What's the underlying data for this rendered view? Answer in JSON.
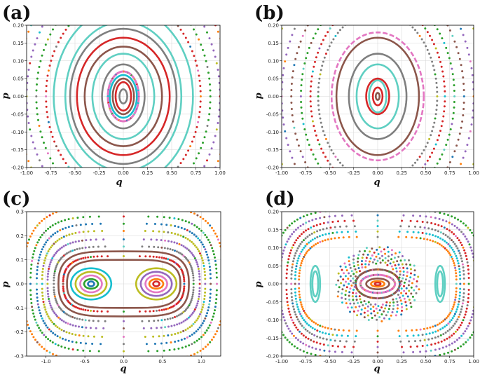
{
  "figure": {
    "colors": [
      "#1f77b4",
      "#ff7f0e",
      "#2ca02c",
      "#d62728",
      "#9467bd",
      "#8c564b",
      "#e377c2",
      "#7f7f7f",
      "#bcbd22",
      "#17becf",
      "#5fcfc2"
    ]
  },
  "chart_data": [
    {
      "panel": "(a)",
      "type": "scatter",
      "xlabel": "q",
      "ylabel": "p",
      "xlim": [
        -1.0,
        1.0
      ],
      "ylim": [
        -0.2,
        0.2
      ],
      "xticks": [
        "-1.00",
        "-0.75",
        "-0.50",
        "-0.25",
        "0.00",
        "0.25",
        "0.50",
        "0.75",
        "1.00"
      ],
      "xtick_values": [
        -1.0,
        -0.75,
        -0.5,
        -0.25,
        0,
        0.25,
        0.5,
        0.75,
        1.0
      ],
      "yticks": [
        "-0.20",
        "-0.15",
        "-0.10",
        "-0.05",
        "0.00",
        "0.05",
        "0.10",
        "0.15",
        "0.20"
      ],
      "ytick_values": [
        -0.2,
        -0.15,
        -0.1,
        -0.05,
        0,
        0.05,
        0.1,
        0.15,
        0.2
      ],
      "grid": true,
      "orbits": [
        {
          "kind": "ellipse",
          "cx": 0,
          "cy": 0,
          "a": 0.04,
          "b": 0.02,
          "color": "#7f7f7f",
          "style": "solid"
        },
        {
          "kind": "ellipse",
          "cx": 0,
          "cy": 0,
          "a": 0.08,
          "b": 0.04,
          "color": "#d62728",
          "style": "solid"
        },
        {
          "kind": "ellipse",
          "cx": 0,
          "cy": 0,
          "a": 0.11,
          "b": 0.05,
          "color": "#8c564b",
          "style": "solid"
        },
        {
          "kind": "ellipse",
          "cx": 0,
          "cy": 0,
          "a": 0.14,
          "b": 0.06,
          "color": "#17becf",
          "style": "solid"
        },
        {
          "kind": "ellipse",
          "cx": 0,
          "cy": 0,
          "a": 0.16,
          "b": 0.07,
          "color": "#e377c2",
          "style": "dots"
        },
        {
          "kind": "ellipse",
          "cx": 0,
          "cy": 0,
          "a": 0.22,
          "b": 0.09,
          "color": "#7f7f7f",
          "style": "solid"
        },
        {
          "kind": "ellipse",
          "cx": 0,
          "cy": 0,
          "a": 0.32,
          "b": 0.12,
          "color": "#5fcfc2",
          "style": "solid"
        },
        {
          "kind": "ellipse",
          "cx": 0,
          "cy": 0,
          "a": 0.4,
          "b": 0.14,
          "color": "#8c564b",
          "style": "solid"
        },
        {
          "kind": "ellipse",
          "cx": 0,
          "cy": 0,
          "a": 0.48,
          "b": 0.165,
          "color": "#d62728",
          "style": "solid"
        },
        {
          "kind": "ellipse",
          "cx": 0,
          "cy": 0,
          "a": 0.55,
          "b": 0.19,
          "color": "#7f7f7f",
          "style": "solid"
        },
        {
          "kind": "ellipse",
          "cx": 0,
          "cy": 0,
          "a": 0.6,
          "b": 0.21,
          "color": "#5fcfc2",
          "style": "solid"
        },
        {
          "kind": "ellipse",
          "cx": 0,
          "cy": 0,
          "a": 0.72,
          "b": 0.25,
          "color": "#5fcfc2",
          "style": "solid"
        },
        {
          "kind": "ellipse",
          "cx": 0,
          "cy": 0,
          "a": 0.8,
          "b": 0.28,
          "color": "#d62728",
          "style": "dots"
        },
        {
          "kind": "ellipse",
          "cx": 0,
          "cy": 0,
          "a": 0.9,
          "b": 0.32,
          "color": "#2ca02c",
          "style": "dots"
        },
        {
          "kind": "ellipse",
          "cx": 0,
          "cy": 0,
          "a": 1.0,
          "b": 0.36,
          "color": "#9467bd",
          "style": "dots"
        },
        {
          "kind": "ellipse",
          "cx": 0,
          "cy": 0,
          "a": 1.1,
          "b": 0.4,
          "color": "#ff7f0e",
          "style": "dots"
        },
        {
          "kind": "ellipse",
          "cx": 0,
          "cy": 0,
          "a": 1.22,
          "b": 0.45,
          "color": "#1f77b4",
          "style": "dots"
        }
      ]
    },
    {
      "panel": "(b)",
      "type": "scatter",
      "xlabel": "q",
      "ylabel": "p",
      "xlim": [
        -1.0,
        1.0
      ],
      "ylim": [
        -0.2,
        0.2
      ],
      "xticks": [
        "-1.00",
        "-0.75",
        "-0.50",
        "-0.25",
        "0.00",
        "0.25",
        "0.50",
        "0.75",
        "1.00"
      ],
      "xtick_values": [
        -1.0,
        -0.75,
        -0.5,
        -0.25,
        0,
        0.25,
        0.5,
        0.75,
        1.0
      ],
      "yticks": [
        "-0.20",
        "-0.15",
        "-0.10",
        "-0.05",
        "0.00",
        "0.05",
        "0.10",
        "0.15",
        "0.20"
      ],
      "ytick_values": [
        -0.2,
        -0.15,
        -0.1,
        -0.05,
        0,
        0.05,
        0.1,
        0.15,
        0.2
      ],
      "grid": true,
      "orbits": [
        {
          "kind": "ellipse",
          "cx": 0,
          "cy": 0,
          "a": 0.02,
          "b": 0.01,
          "color": "#8c564b",
          "style": "solid"
        },
        {
          "kind": "ellipse",
          "cx": 0,
          "cy": 0,
          "a": 0.05,
          "b": 0.025,
          "color": "#d62728",
          "style": "solid"
        },
        {
          "kind": "ellipse",
          "cx": 0,
          "cy": 0,
          "a": 0.09,
          "b": 0.045,
          "color": "#5fcfc2",
          "style": "solid"
        },
        {
          "kind": "ellipse",
          "cx": 0,
          "cy": 0,
          "a": 0.12,
          "b": 0.05,
          "color": "#d62728",
          "style": "solid"
        },
        {
          "kind": "ellipse",
          "cx": 0,
          "cy": 0,
          "a": 0.22,
          "b": 0.09,
          "color": "#5fcfc2",
          "style": "solid"
        },
        {
          "kind": "ellipse",
          "cx": 0,
          "cy": 0,
          "a": 0.3,
          "b": 0.12,
          "color": "#7f7f7f",
          "style": "solid"
        },
        {
          "kind": "ellipse",
          "cx": 0,
          "cy": 0,
          "a": 0.43,
          "b": 0.165,
          "color": "#8c564b",
          "style": "solid"
        },
        {
          "kind": "ellipse",
          "cx": 0,
          "cy": 0,
          "a": 0.48,
          "b": 0.18,
          "color": "#e377c2",
          "style": "dash"
        },
        {
          "kind": "ellipse",
          "cx": 0,
          "cy": 0,
          "a": 0.62,
          "b": 0.24,
          "color": "#7f7f7f",
          "style": "dots"
        },
        {
          "kind": "ellipse",
          "cx": 0,
          "cy": 0,
          "a": 0.7,
          "b": 0.27,
          "color": "#d62728",
          "style": "dots"
        },
        {
          "kind": "ellipse",
          "cx": 0,
          "cy": 0,
          "a": 0.8,
          "b": 0.3,
          "color": "#2ca02c",
          "style": "dots"
        },
        {
          "kind": "ellipse",
          "cx": 0,
          "cy": 0,
          "a": 0.9,
          "b": 0.34,
          "color": "#8c564b",
          "style": "dots"
        },
        {
          "kind": "ellipse",
          "cx": 0,
          "cy": 0,
          "a": 1.0,
          "b": 0.38,
          "color": "#9467bd",
          "style": "dots"
        },
        {
          "kind": "ellipse",
          "cx": 0,
          "cy": 0,
          "a": 1.12,
          "b": 0.42,
          "color": "#bcbd22",
          "style": "dots"
        }
      ]
    },
    {
      "panel": "(c)",
      "type": "scatter",
      "xlabel": "q",
      "ylabel": "p",
      "xlim": [
        -1.25,
        1.25
      ],
      "ylim": [
        -0.3,
        0.3
      ],
      "xticks": [
        "-1.0",
        "-0.5",
        "0.0",
        "0.5",
        "1.0"
      ],
      "xtick_values": [
        -1.0,
        -0.5,
        0,
        0.5,
        1.0
      ],
      "yticks": [
        "-0.3",
        "-0.2",
        "-0.1",
        "0.0",
        "0.1",
        "0.2",
        "0.3"
      ],
      "ytick_values": [
        -0.3,
        -0.2,
        -0.1,
        0,
        0.1,
        0.2,
        0.3
      ],
      "grid": true,
      "orbits": [
        {
          "kind": "ellipse",
          "cx": -0.42,
          "cy": 0,
          "a": 0.04,
          "b": 0.01,
          "color": "#1f77b4",
          "style": "solid"
        },
        {
          "kind": "ellipse",
          "cx": -0.42,
          "cy": 0,
          "a": 0.09,
          "b": 0.02,
          "color": "#2ca02c",
          "style": "solid"
        },
        {
          "kind": "ellipse",
          "cx": -0.42,
          "cy": 0,
          "a": 0.14,
          "b": 0.035,
          "color": "#e377c2",
          "style": "solid"
        },
        {
          "kind": "ellipse",
          "cx": -0.42,
          "cy": 0,
          "a": 0.2,
          "b": 0.05,
          "color": "#bcbd22",
          "style": "solid"
        },
        {
          "kind": "ellipse",
          "cx": -0.42,
          "cy": 0,
          "a": 0.26,
          "b": 0.065,
          "color": "#17becf",
          "style": "solid"
        },
        {
          "kind": "ellipse",
          "cx": 0.42,
          "cy": 0,
          "a": 0.04,
          "b": 0.01,
          "color": "#d62728",
          "style": "solid"
        },
        {
          "kind": "ellipse",
          "cx": 0.42,
          "cy": 0,
          "a": 0.09,
          "b": 0.02,
          "color": "#ff7f0e",
          "style": "solid"
        },
        {
          "kind": "ellipse",
          "cx": 0.42,
          "cy": 0,
          "a": 0.14,
          "b": 0.035,
          "color": "#e377c2",
          "style": "solid"
        },
        {
          "kind": "ellipse",
          "cx": 0.42,
          "cy": 0,
          "a": 0.2,
          "b": 0.05,
          "color": "#9467bd",
          "style": "solid"
        },
        {
          "kind": "ellipse",
          "cx": 0.42,
          "cy": 0,
          "a": 0.26,
          "b": 0.065,
          "color": "#bcbd22",
          "style": "solid"
        },
        {
          "kind": "stadium",
          "hw": 0.73,
          "hh": 0.1,
          "color": "#8c564b",
          "style": "solid"
        },
        {
          "kind": "stadium",
          "hw": 0.78,
          "hh": 0.115,
          "color": "#d62728",
          "style": "dots"
        },
        {
          "kind": "stadium",
          "hw": 0.84,
          "hh": 0.135,
          "color": "#8c564b",
          "style": "solid"
        },
        {
          "kind": "stadium",
          "hw": 0.9,
          "hh": 0.155,
          "color": "#7f7f7f",
          "style": "dots"
        },
        {
          "kind": "stadium",
          "hw": 0.98,
          "hh": 0.185,
          "color": "#9467bd",
          "style": "dots"
        },
        {
          "kind": "stadium",
          "hw": 1.05,
          "hh": 0.22,
          "color": "#bcbd22",
          "style": "dots"
        },
        {
          "kind": "stadium",
          "hw": 1.12,
          "hh": 0.25,
          "color": "#1f77b4",
          "style": "dots"
        },
        {
          "kind": "stadium",
          "hw": 1.2,
          "hh": 0.28,
          "color": "#2ca02c",
          "style": "dots"
        },
        {
          "kind": "stadium",
          "hw": 1.3,
          "hh": 0.32,
          "color": "#ff7f0e",
          "style": "dots"
        }
      ]
    },
    {
      "panel": "(d)",
      "type": "scatter",
      "xlabel": "q",
      "ylabel": "p",
      "xlim": [
        -1.0,
        1.0
      ],
      "ylim": [
        -0.2,
        0.2
      ],
      "xticks": [
        "-1.00",
        "-0.75",
        "-0.50",
        "-0.25",
        "0.00",
        "0.25",
        "0.50",
        "0.75",
        "1.00"
      ],
      "xtick_values": [
        -1.0,
        -0.75,
        -0.5,
        -0.25,
        0,
        0.25,
        0.5,
        0.75,
        1.0
      ],
      "yticks": [
        "-0.20",
        "-0.15",
        "-0.10",
        "-0.05",
        "0.00",
        "0.05",
        "0.10",
        "0.15",
        "0.20"
      ],
      "ytick_values": [
        -0.2,
        -0.15,
        -0.1,
        -0.05,
        0,
        0.05,
        0.1,
        0.15,
        0.2
      ],
      "grid": true,
      "orbits": [
        {
          "kind": "ellipse",
          "cx": 0,
          "cy": 0,
          "a": 0.03,
          "b": 0.004,
          "color": "#d62728",
          "style": "solid"
        },
        {
          "kind": "ellipse",
          "cx": 0,
          "cy": 0,
          "a": 0.07,
          "b": 0.008,
          "color": "#ff7f0e",
          "style": "solid"
        },
        {
          "kind": "ellipse",
          "cx": 0,
          "cy": 0,
          "a": 0.12,
          "b": 0.015,
          "color": "#8c564b",
          "style": "solid"
        },
        {
          "kind": "ellipse",
          "cx": 0,
          "cy": 0,
          "a": 0.18,
          "b": 0.025,
          "color": "#e377c2",
          "style": "dots"
        },
        {
          "kind": "ellipse",
          "cx": 0,
          "cy": 0,
          "a": 0.23,
          "b": 0.04,
          "color": "#8c564b",
          "style": "dots"
        },
        {
          "kind": "ellipse",
          "cx": 0.65,
          "cy": 0,
          "a": 0.03,
          "b": 0.035,
          "color": "#5fcfc2",
          "style": "solid"
        },
        {
          "kind": "ellipse",
          "cx": 0.65,
          "cy": 0,
          "a": 0.05,
          "b": 0.05,
          "color": "#5fcfc2",
          "style": "solid"
        },
        {
          "kind": "ellipse",
          "cx": -0.65,
          "cy": 0,
          "a": 0.03,
          "b": 0.035,
          "color": "#5fcfc2",
          "style": "solid"
        },
        {
          "kind": "ellipse",
          "cx": -0.65,
          "cy": 0,
          "a": 0.05,
          "b": 0.05,
          "color": "#5fcfc2",
          "style": "solid"
        },
        {
          "kind": "chaos",
          "cx": 0,
          "cy": 0,
          "a": 0.42,
          "b": 0.1,
          "color": "mixed",
          "style": "dots"
        },
        {
          "kind": "stadium",
          "hw": 0.82,
          "hh": 0.13,
          "color": "#ff7f0e",
          "style": "dots"
        },
        {
          "kind": "stadium",
          "hw": 0.86,
          "hh": 0.145,
          "color": "#17becf",
          "style": "dots"
        },
        {
          "kind": "stadium",
          "hw": 0.9,
          "hh": 0.16,
          "color": "#7f7f7f",
          "style": "dots"
        },
        {
          "kind": "stadium",
          "hw": 0.95,
          "hh": 0.175,
          "color": "#d62728",
          "style": "dots"
        },
        {
          "kind": "stadium",
          "hw": 1.02,
          "hh": 0.19,
          "color": "#9467bd",
          "style": "dots"
        },
        {
          "kind": "stadium",
          "hw": 1.1,
          "hh": 0.205,
          "color": "#2ca02c",
          "style": "dots"
        }
      ]
    }
  ]
}
